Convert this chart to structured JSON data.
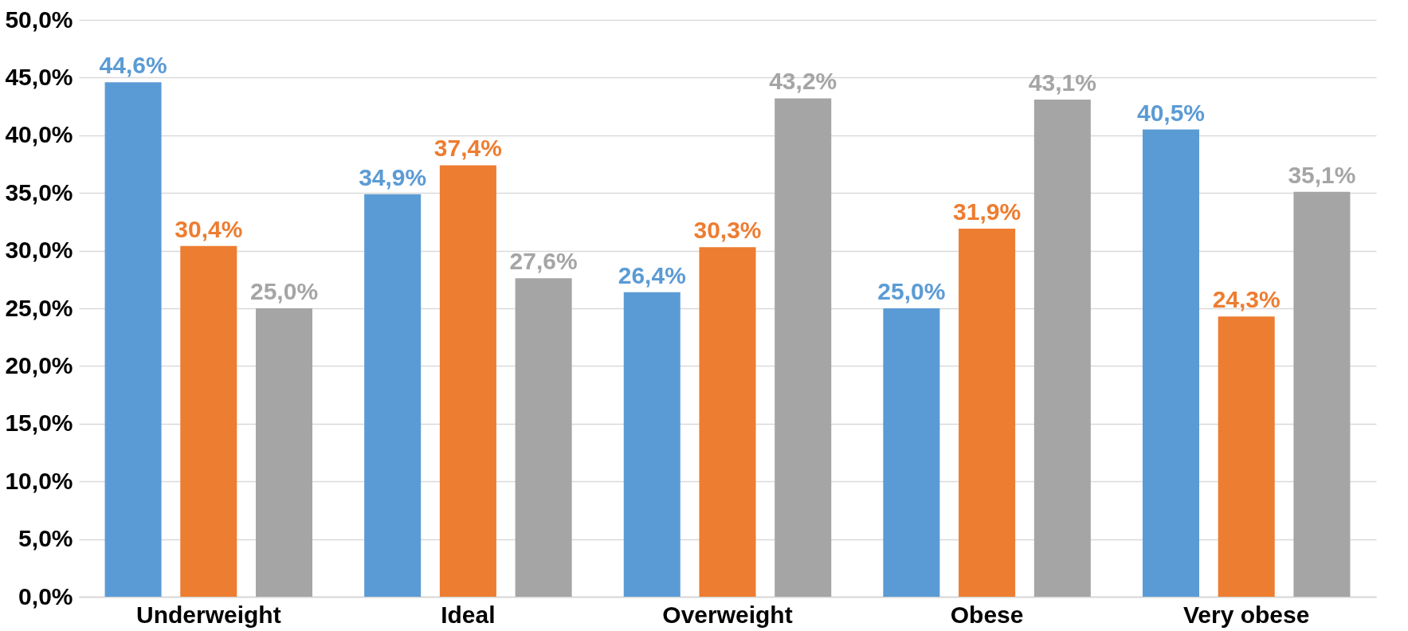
{
  "chart_data": {
    "type": "bar",
    "categories": [
      "Underweight",
      "Ideal",
      "Overweight",
      "Obese",
      "Very obese"
    ],
    "series": [
      {
        "color": "#5b9bd5",
        "values": [
          44.6,
          34.9,
          26.4,
          25.0,
          40.5
        ],
        "value_labels": [
          "44,6%",
          "34,9%",
          "26,4%",
          "25,0%",
          "40,5%"
        ]
      },
      {
        "color": "#ed7d31",
        "values": [
          30.4,
          37.4,
          30.3,
          31.9,
          24.3
        ],
        "value_labels": [
          "30,4%",
          "37,4%",
          "30,3%",
          "31,9%",
          "24,3%"
        ]
      },
      {
        "color": "#a5a5a5",
        "values": [
          25.0,
          27.6,
          43.2,
          43.1,
          35.1
        ],
        "value_labels": [
          "25,0%",
          "27,6%",
          "43,2%",
          "43,1%",
          "35,1%"
        ]
      }
    ],
    "ylim": [
      0,
      50
    ],
    "yticks": [
      {
        "value": 0,
        "label": "0,0%"
      },
      {
        "value": 5,
        "label": "5,0%"
      },
      {
        "value": 10,
        "label": "10,0%"
      },
      {
        "value": 15,
        "label": "15,0%"
      },
      {
        "value": 20,
        "label": "20,0%"
      },
      {
        "value": 25,
        "label": "25,0%"
      },
      {
        "value": 30,
        "label": "30,0%"
      },
      {
        "value": 35,
        "label": "35,0%"
      },
      {
        "value": 40,
        "label": "40,0%"
      },
      {
        "value": 45,
        "label": "45,0%"
      },
      {
        "value": 50,
        "label": "50,0%"
      }
    ],
    "grid": "y"
  }
}
